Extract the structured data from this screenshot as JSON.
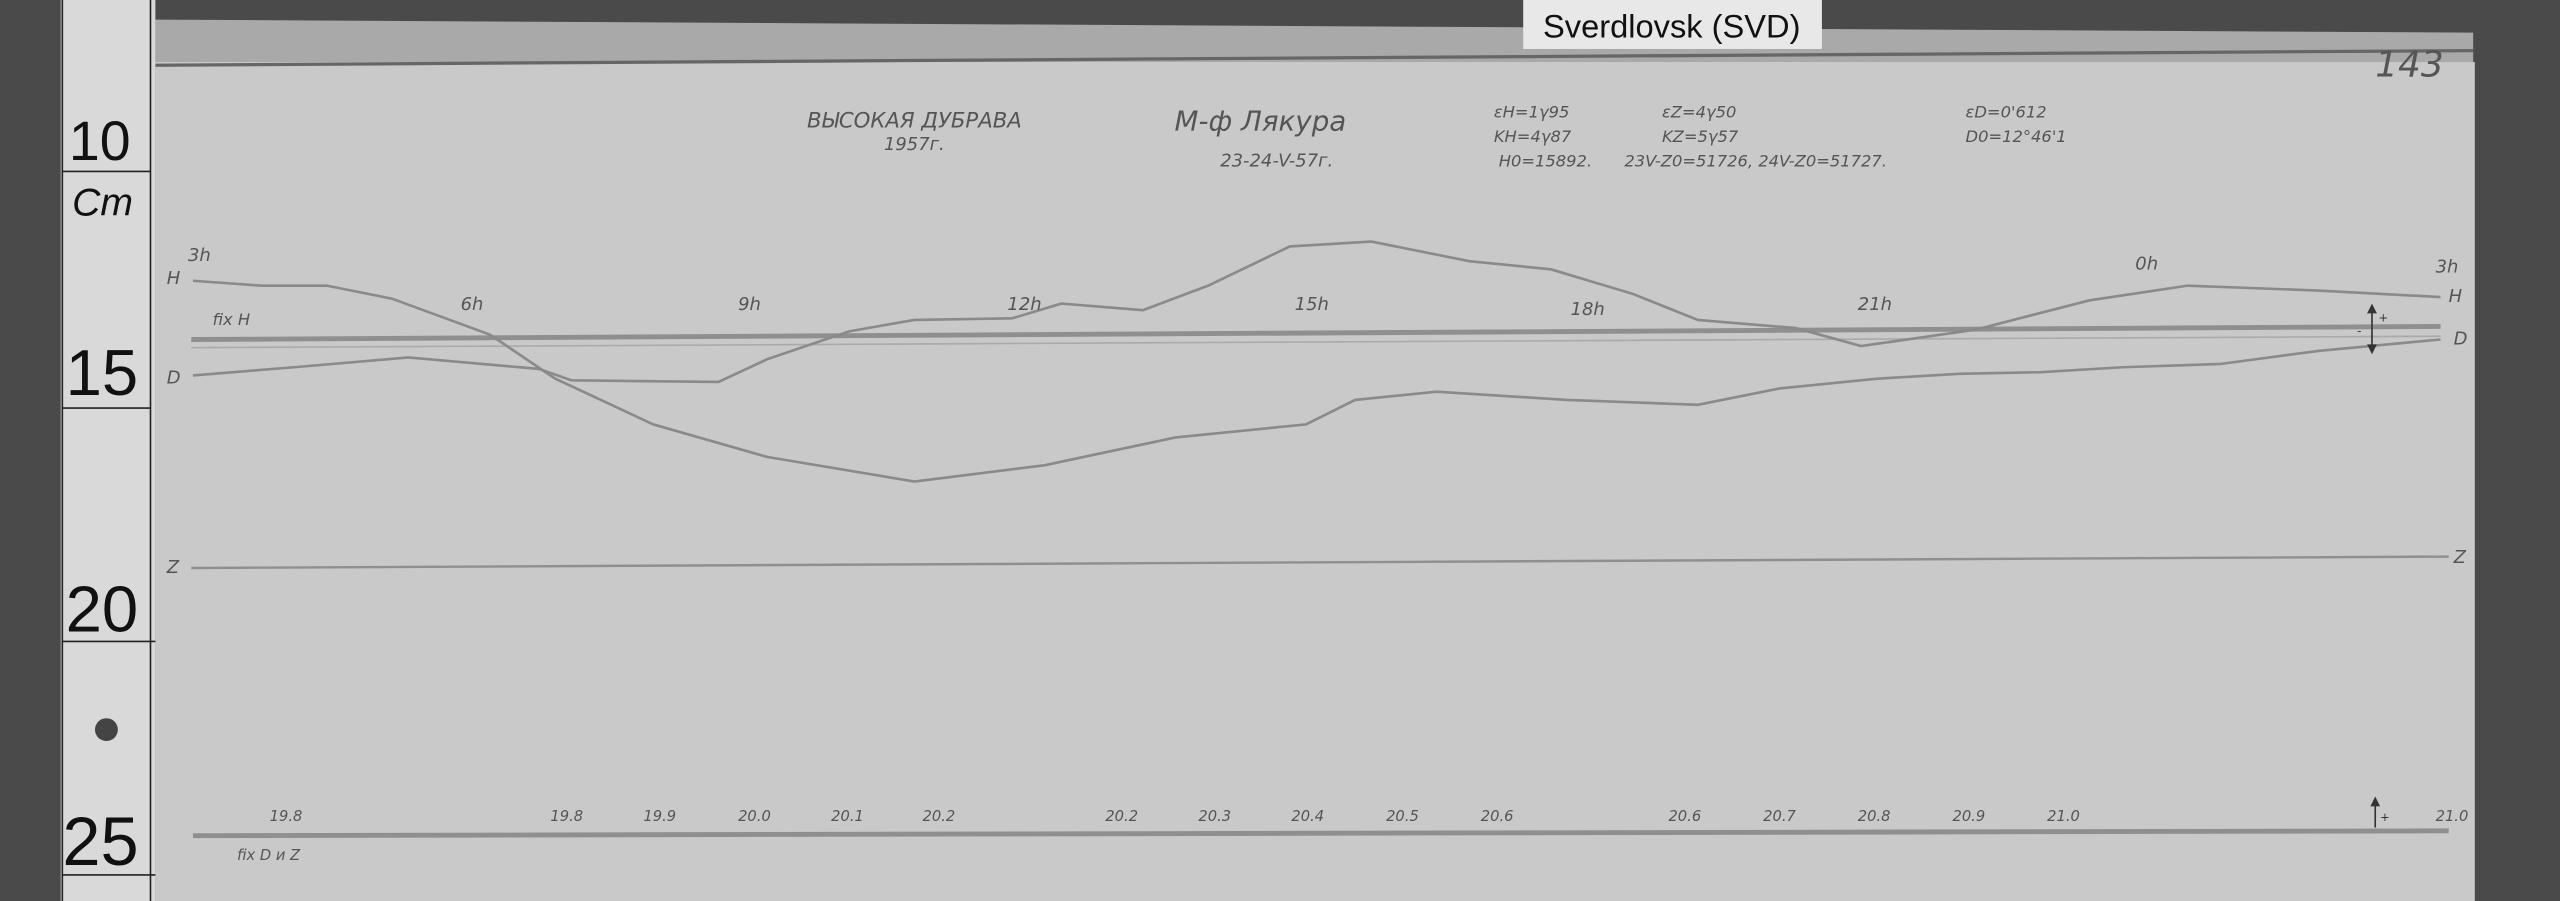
{
  "station_tag": "Sverdlovsk (SVD)",
  "page_number": "143",
  "ruler": {
    "labels": [
      "10",
      "Cm",
      "15",
      "20",
      "25"
    ]
  },
  "header": {
    "station": "ВЫСОКАЯ ДУБРАВА",
    "year": "1957г.",
    "instrument": "М-ф Лякура",
    "dates": "23-24-V-57г."
  },
  "constants": {
    "eps_h": "εH=1γ95",
    "k_h": "KH=4γ87",
    "h0": "H0=15892.",
    "eps_z": "εZ=4γ50",
    "k_z": "KZ=5γ57",
    "z0": "23V-Z0=51726, 24V-Z0=51727.",
    "eps_d": "εD=0'612",
    "d0": "D0=12°46'1"
  },
  "trace_labels": {
    "h_left": "H",
    "d_left": "D",
    "h_right": "H",
    "d_right": "D",
    "z_left": "Z",
    "z_right": "Z"
  },
  "fix_h": "fix H",
  "fix_dz": "fix D и Z",
  "hours": [
    "3h",
    "6h",
    "9h",
    "12h",
    "15h",
    "18h",
    "21h",
    "0h",
    "3h"
  ],
  "temperatures": [
    "19.8",
    "19.8",
    "19.9",
    "20.0",
    "20.1",
    "20.2",
    "20.2",
    "20.3",
    "20.4",
    "20.5",
    "20.6",
    "20.6",
    "20.7",
    "20.8",
    "20.9",
    "21.0",
    "21.0"
  ],
  "colors": {
    "desk": "#4a4a4a",
    "paper": "#c9c9c9",
    "trace": "#8a8a8a"
  }
}
